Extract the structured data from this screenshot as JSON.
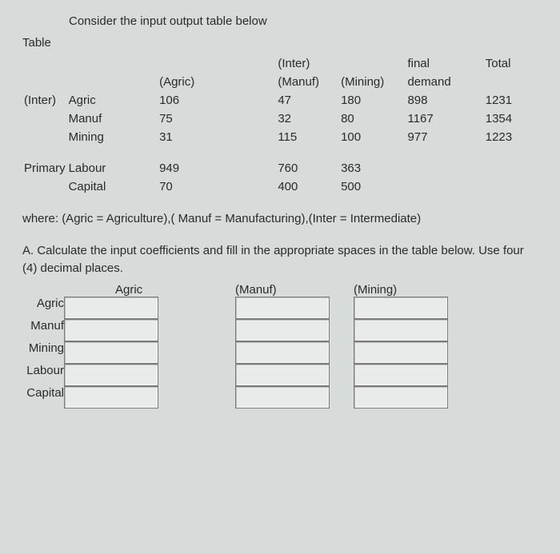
{
  "title": "Consider the input output table below",
  "table_label": "Table",
  "io_table": {
    "col_headers_top": [
      "",
      "",
      "",
      "",
      "(Inter)",
      "",
      "final",
      "Total"
    ],
    "col_headers_mid": [
      "",
      "",
      "(Agric)",
      "",
      "(Manuf)",
      "(Mining)",
      "demand",
      ""
    ],
    "side_label": "(Inter)",
    "rows": [
      {
        "label": "Agric",
        "agric": "106",
        "manuf": "47",
        "mining": "180",
        "final": "898",
        "total": "1231"
      },
      {
        "label": "Manuf",
        "agric": "75",
        "manuf": "32",
        "mining": "80",
        "final": "1167",
        "total": "1354"
      },
      {
        "label": "Mining",
        "agric": "31",
        "manuf": "115",
        "mining": "100",
        "final": "977",
        "total": "1223"
      }
    ],
    "primary_label": "Primary",
    "primary_rows": [
      {
        "label": "Labour",
        "agric": "949",
        "manuf": "760",
        "mining": "363"
      },
      {
        "label": "Capital",
        "agric": "70",
        "manuf": "400",
        "mining": "500"
      }
    ]
  },
  "note": "where: (Agric = Agriculture),( Manuf = Manufacturing),(Inter = Intermediate)",
  "partA": "A. Calculate the input coefficients and fill in the appropriate spaces in the table below. Use four (4) decimal places.",
  "coef_table": {
    "col_headers": [
      "Agric",
      "(Manuf)",
      "(Mining)"
    ],
    "row_labels": [
      "Agric",
      "Manuf",
      "Mining",
      "Labour",
      "Capital"
    ]
  },
  "colors": {
    "background": "#d7dbd9",
    "text": "#2a2a2a",
    "input_bg": "#e8ebe9",
    "input_border": "#7a7a7a"
  },
  "fontsize": {
    "body": 15
  }
}
